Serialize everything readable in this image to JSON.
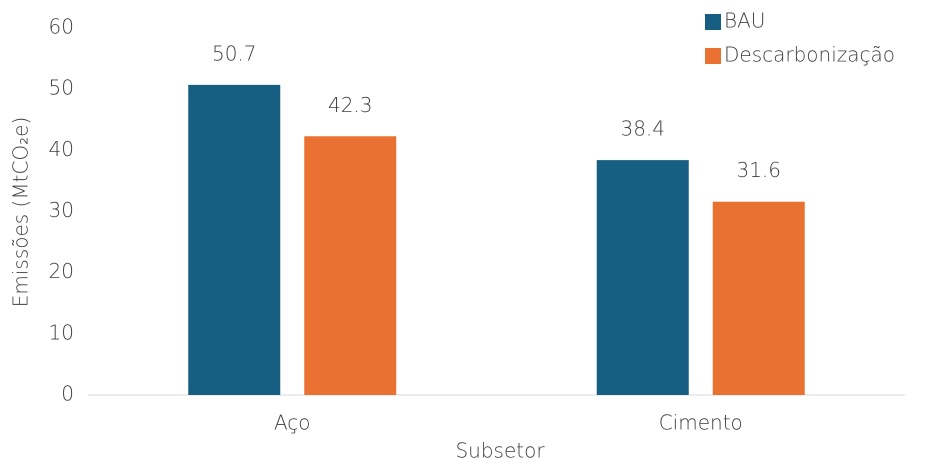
{
  "chart_data": {
    "type": "bar",
    "x_label": "Subsetor",
    "y_label": "Emissões (MtCO₂e)",
    "categories": [
      "Aço",
      "Cimento"
    ],
    "series": [
      {
        "name": "BAU",
        "color": "#175f82",
        "values": [
          50.7,
          38.4
        ]
      },
      {
        "name": "Descarbonização",
        "color": "#e97132",
        "values": [
          42.3,
          31.6
        ]
      }
    ],
    "ylim": [
      0,
      60
    ],
    "yticks": [
      0,
      10,
      20,
      30,
      40,
      50,
      60
    ],
    "grid": false,
    "legend": "top-right"
  }
}
